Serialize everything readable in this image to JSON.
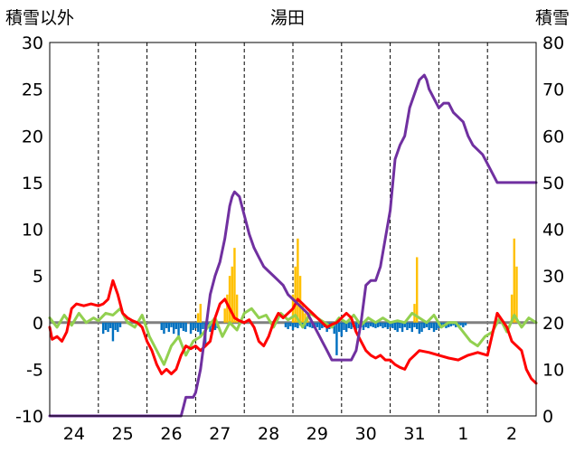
{
  "chart_data": {
    "type": "line",
    "title": "湯田",
    "ylabel_left": "積雪以外",
    "ylabel_right": "積雪",
    "y_left_lim": [
      -10,
      30
    ],
    "y_left_ticks": [
      30,
      25,
      20,
      15,
      10,
      5,
      0,
      -5,
      -10
    ],
    "y_right_lim": [
      0,
      80
    ],
    "y_right_ticks": [
      80,
      70,
      60,
      50,
      40,
      30,
      20,
      10,
      0
    ],
    "x_lim": [
      0,
      10
    ],
    "categories": [
      "24",
      "25",
      "26",
      "27",
      "28",
      "29",
      "30",
      "31",
      "1",
      "2"
    ],
    "grid": "vertical-dashed",
    "colors": {
      "temperature": "#ff0000",
      "snow_depth": "#7030a0",
      "green_series": "#92d050",
      "blue_bars": "#0070c0",
      "orange_bars": "#ffc000",
      "zero_line": "#808080"
    },
    "series": [
      {
        "key": "temperature",
        "axis": "left",
        "x": [
          0,
          0.05,
          0.15,
          0.25,
          0.35,
          0.45,
          0.55,
          0.7,
          0.85,
          1.0,
          1.1,
          1.2,
          1.3,
          1.4,
          1.5,
          1.6,
          1.7,
          1.8,
          1.9,
          2.0,
          2.1,
          2.2,
          2.3,
          2.4,
          2.5,
          2.6,
          2.7,
          2.8,
          2.9,
          3.0,
          3.1,
          3.2,
          3.3,
          3.4,
          3.5,
          3.6,
          3.7,
          3.8,
          3.9,
          4.0,
          4.1,
          4.2,
          4.3,
          4.4,
          4.5,
          4.6,
          4.7,
          4.8,
          4.9,
          5.0,
          5.1,
          5.2,
          5.3,
          5.4,
          5.5,
          5.6,
          5.7,
          5.8,
          5.9,
          6.0,
          6.1,
          6.2,
          6.3,
          6.4,
          6.5,
          6.6,
          6.7,
          6.8,
          6.9,
          7.0,
          7.1,
          7.2,
          7.3,
          7.4,
          7.5,
          7.6,
          7.8,
          8.0,
          8.2,
          8.4,
          8.6,
          8.8,
          9.0,
          9.2,
          9.4,
          9.5,
          9.6,
          9.7,
          9.8,
          9.9,
          10.0
        ],
        "y": [
          -0.5,
          -1.8,
          -1.5,
          -2.0,
          -1.0,
          1.5,
          2.0,
          1.8,
          2.0,
          1.8,
          2.0,
          2.5,
          4.5,
          3.0,
          1.0,
          0.5,
          0.2,
          0.0,
          -0.5,
          -2.0,
          -3.0,
          -4.5,
          -5.5,
          -5.0,
          -5.5,
          -5.0,
          -3.5,
          -2.5,
          -2.8,
          -2.5,
          -3.0,
          -2.5,
          -2.0,
          0.5,
          2.0,
          2.5,
          1.5,
          0.5,
          0.2,
          0.0,
          0.3,
          -0.5,
          -2.0,
          -2.5,
          -1.5,
          0.0,
          1.0,
          0.5,
          1.0,
          1.5,
          2.5,
          2.0,
          1.5,
          1.0,
          0.5,
          0.0,
          -0.5,
          -0.2,
          0.0,
          0.5,
          1.0,
          0.5,
          -1.0,
          -2.0,
          -3.0,
          -3.5,
          -3.8,
          -3.5,
          -4.0,
          -4.0,
          -4.5,
          -4.8,
          -5.0,
          -4.0,
          -3.5,
          -3.0,
          -3.2,
          -3.5,
          -3.8,
          -4.0,
          -3.5,
          -3.2,
          -3.5,
          1.0,
          -0.5,
          -2.0,
          -2.5,
          -3.0,
          -5.0,
          -6.0,
          -6.5
        ]
      },
      {
        "key": "snow_depth",
        "axis": "right",
        "x": [
          0,
          2.7,
          2.75,
          2.8,
          2.95,
          3.0,
          3.1,
          3.2,
          3.3,
          3.4,
          3.5,
          3.6,
          3.7,
          3.75,
          3.8,
          3.9,
          4.0,
          4.1,
          4.2,
          4.3,
          4.4,
          4.5,
          4.6,
          4.7,
          4.8,
          4.9,
          5.0,
          5.1,
          5.2,
          5.3,
          5.4,
          5.5,
          5.6,
          5.7,
          5.8,
          5.9,
          6.0,
          6.1,
          6.2,
          6.3,
          6.4,
          6.5,
          6.6,
          6.7,
          6.8,
          6.9,
          7.0,
          7.1,
          7.2,
          7.3,
          7.4,
          7.5,
          7.6,
          7.7,
          7.75,
          7.8,
          7.9,
          8.0,
          8.1,
          8.2,
          8.3,
          8.4,
          8.5,
          8.6,
          8.7,
          8.8,
          8.9,
          9.0,
          9.1,
          9.2,
          9.3,
          9.4,
          9.5,
          9.6,
          9.7,
          9.8,
          9.9,
          10.0
        ],
        "y": [
          0,
          0,
          2,
          4,
          4,
          5,
          10,
          18,
          26,
          30,
          33,
          38,
          45,
          47,
          48,
          47,
          43,
          39,
          36,
          34,
          32,
          31,
          30,
          29,
          28,
          26,
          25,
          24,
          23,
          22,
          20,
          18,
          16,
          14,
          12,
          12,
          12,
          12,
          12,
          14,
          20,
          28,
          29,
          29,
          32,
          38,
          44,
          55,
          58,
          60,
          66,
          69,
          72,
          73,
          72,
          70,
          68,
          66,
          67,
          67,
          65,
          64,
          63,
          60,
          58,
          57,
          56,
          54,
          52,
          50,
          50,
          50,
          50,
          50,
          50,
          50,
          50,
          50
        ]
      },
      {
        "key": "green_series",
        "axis": "left",
        "x": [
          0,
          0.15,
          0.3,
          0.45,
          0.6,
          0.75,
          0.9,
          1.0,
          1.15,
          1.3,
          1.45,
          1.6,
          1.75,
          1.9,
          2.05,
          2.2,
          2.35,
          2.5,
          2.65,
          2.8,
          2.95,
          3.1,
          3.25,
          3.4,
          3.55,
          3.7,
          3.85,
          4.0,
          4.15,
          4.3,
          4.45,
          4.6,
          4.75,
          4.9,
          5.05,
          5.2,
          5.35,
          5.5,
          5.65,
          5.8,
          5.95,
          6.1,
          6.25,
          6.4,
          6.55,
          6.7,
          6.85,
          7.0,
          7.15,
          7.3,
          7.45,
          7.6,
          7.75,
          7.9,
          8.05,
          8.2,
          8.35,
          8.5,
          8.65,
          8.8,
          8.95,
          9.1,
          9.25,
          9.4,
          9.55,
          9.7,
          9.85,
          10.0
        ],
        "y": [
          0.5,
          -0.5,
          0.8,
          -0.3,
          1.0,
          0.0,
          0.5,
          0.2,
          1.0,
          0.8,
          1.5,
          0.0,
          -0.5,
          0.8,
          -1.5,
          -3.0,
          -4.5,
          -2.5,
          -1.5,
          -3.5,
          -2.0,
          -1.5,
          -0.5,
          0.5,
          -1.5,
          0.0,
          -0.8,
          1.0,
          1.5,
          0.5,
          0.8,
          -0.5,
          1.0,
          0.3,
          0.8,
          -0.5,
          1.0,
          0.5,
          0.0,
          -0.5,
          0.5,
          0.0,
          0.8,
          -0.3,
          0.5,
          0.0,
          0.5,
          0.0,
          0.2,
          0.0,
          1.0,
          0.5,
          0.0,
          0.8,
          -0.5,
          0.0,
          0.0,
          -1.0,
          -2.0,
          -2.5,
          -1.5,
          -1.0,
          0.5,
          -1.0,
          0.8,
          -0.5,
          0.5,
          0.0
        ]
      }
    ],
    "bars": [
      {
        "key": "blue_bars",
        "axis": "left",
        "x": [
          1.1,
          1.15,
          1.2,
          1.25,
          1.3,
          1.35,
          1.4,
          1.45,
          2.3,
          2.35,
          2.4,
          2.45,
          2.5,
          2.55,
          2.6,
          2.65,
          2.7,
          2.75,
          2.8,
          2.9,
          2.95,
          3.0,
          3.05,
          3.1,
          3.15,
          3.2,
          3.25,
          3.3,
          3.35,
          3.4,
          3.45,
          4.85,
          4.9,
          4.95,
          5.0,
          5.05,
          5.1,
          5.15,
          5.2,
          5.25,
          5.3,
          5.35,
          5.4,
          5.45,
          5.5,
          5.55,
          5.6,
          5.65,
          5.7,
          5.75,
          5.8,
          5.85,
          5.9,
          5.95,
          6.0,
          6.05,
          6.1,
          6.15,
          6.2,
          6.25,
          6.3,
          6.35,
          6.4,
          6.45,
          6.5,
          6.55,
          6.6,
          6.65,
          6.7,
          6.75,
          6.8,
          6.85,
          6.9,
          6.95,
          7.0,
          7.05,
          7.1,
          7.15,
          7.2,
          7.25,
          7.3,
          7.35,
          7.4,
          7.45,
          7.5,
          7.55,
          7.6,
          7.65,
          7.7,
          7.75,
          7.8,
          7.85,
          7.9,
          7.95,
          8.0,
          8.05,
          8.1,
          8.15,
          8.2,
          8.25,
          8.3,
          8.35,
          8.4,
          8.45,
          8.5,
          8.55
        ],
        "y": [
          -1.2,
          -0.8,
          -1.0,
          -0.6,
          -2.0,
          -0.8,
          -1.0,
          -0.5,
          -0.8,
          -1.2,
          -0.6,
          -1.0,
          -0.5,
          -1.2,
          -0.7,
          -1.5,
          -0.6,
          -0.9,
          -1.0,
          -1.2,
          -0.8,
          -0.6,
          -1.0,
          -1.5,
          -0.7,
          -2.5,
          -0.6,
          -1.0,
          -0.5,
          -0.8,
          -0.6,
          -0.5,
          -0.7,
          -0.4,
          -0.8,
          -0.5,
          -0.6,
          -0.3,
          -0.5,
          -0.7,
          -0.4,
          -0.5,
          -0.6,
          -0.4,
          -0.5,
          -0.8,
          -0.6,
          -0.5,
          -1.0,
          -0.7,
          -0.5,
          -1.2,
          -3.5,
          -1.0,
          -1.5,
          -0.8,
          -1.0,
          -0.6,
          -0.7,
          -0.5,
          -0.8,
          -0.6,
          -0.5,
          -0.8,
          -0.5,
          -0.6,
          -0.4,
          -0.5,
          -0.6,
          -0.5,
          -0.4,
          -0.6,
          -0.5,
          -0.7,
          -0.5,
          -0.6,
          -0.8,
          -1.0,
          -0.6,
          -1.0,
          -0.5,
          -0.8,
          -0.6,
          -1.0,
          -0.5,
          -0.7,
          -1.2,
          -1.0,
          -0.6,
          -0.5,
          -0.8,
          -0.6,
          -1.0,
          -0.8,
          -0.6,
          -0.5,
          -0.4,
          -0.6,
          -0.5,
          -0.4,
          -0.3,
          -0.5,
          -0.4,
          -0.3,
          -0.5,
          -0.3
        ]
      },
      {
        "key": "orange_bars",
        "axis": "left",
        "x": [
          3.05,
          3.1,
          3.6,
          3.65,
          3.7,
          3.75,
          3.8,
          3.85,
          5.0,
          5.05,
          5.1,
          5.15,
          5.2,
          5.25,
          5.3,
          7.5,
          7.55,
          9.5,
          9.55,
          9.6
        ],
        "y": [
          1.0,
          2.0,
          1.5,
          3.0,
          5.0,
          6.0,
          8.0,
          3.0,
          3.0,
          6.0,
          9.0,
          5.0,
          2.0,
          1.0,
          0.5,
          2.0,
          7.0,
          3.0,
          9.0,
          6.0
        ]
      }
    ]
  }
}
